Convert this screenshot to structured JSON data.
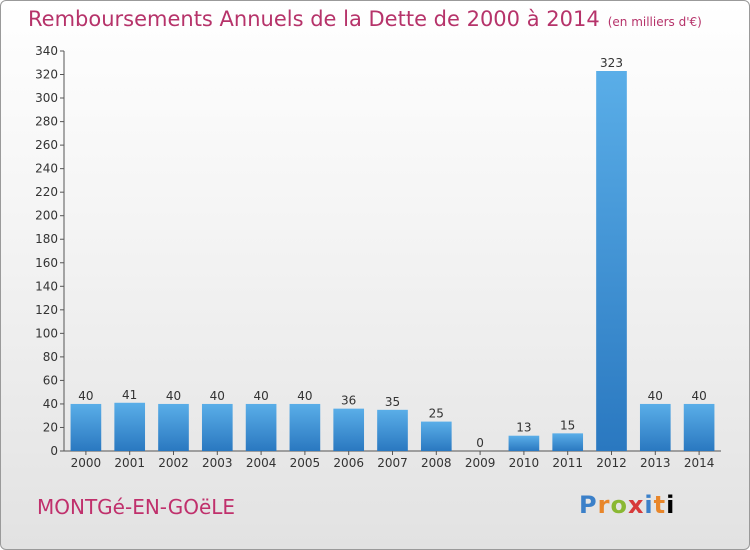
{
  "title": "Remboursements Annuels de la Dette de 2000 à 2014",
  "unit": "(en milliers d'€)",
  "commune": "MONTGé-EN-GOëLE",
  "logo_letters": [
    "P",
    "r",
    "o",
    "x",
    "i",
    "t",
    "i"
  ],
  "colors": {
    "bar_top": "#5aaee8",
    "bar_bottom": "#2a78c0",
    "title": "#b6336a"
  },
  "chart_data": {
    "type": "bar",
    "categories": [
      "2000",
      "2001",
      "2002",
      "2003",
      "2004",
      "2005",
      "2006",
      "2007",
      "2008",
      "2009",
      "2010",
      "2011",
      "2012",
      "2013",
      "2014"
    ],
    "values": [
      40,
      41,
      40,
      40,
      40,
      40,
      36,
      35,
      25,
      0,
      13,
      15,
      323,
      40,
      40
    ],
    "title": "Remboursements Annuels de la Dette de 2000 à 2014",
    "xlabel": "",
    "ylabel": "",
    "ylim": [
      0,
      340
    ],
    "yticks": [
      0,
      20,
      40,
      60,
      80,
      100,
      120,
      140,
      160,
      180,
      200,
      220,
      240,
      260,
      280,
      300,
      320,
      340
    ],
    "grid": false,
    "legend": "none"
  }
}
